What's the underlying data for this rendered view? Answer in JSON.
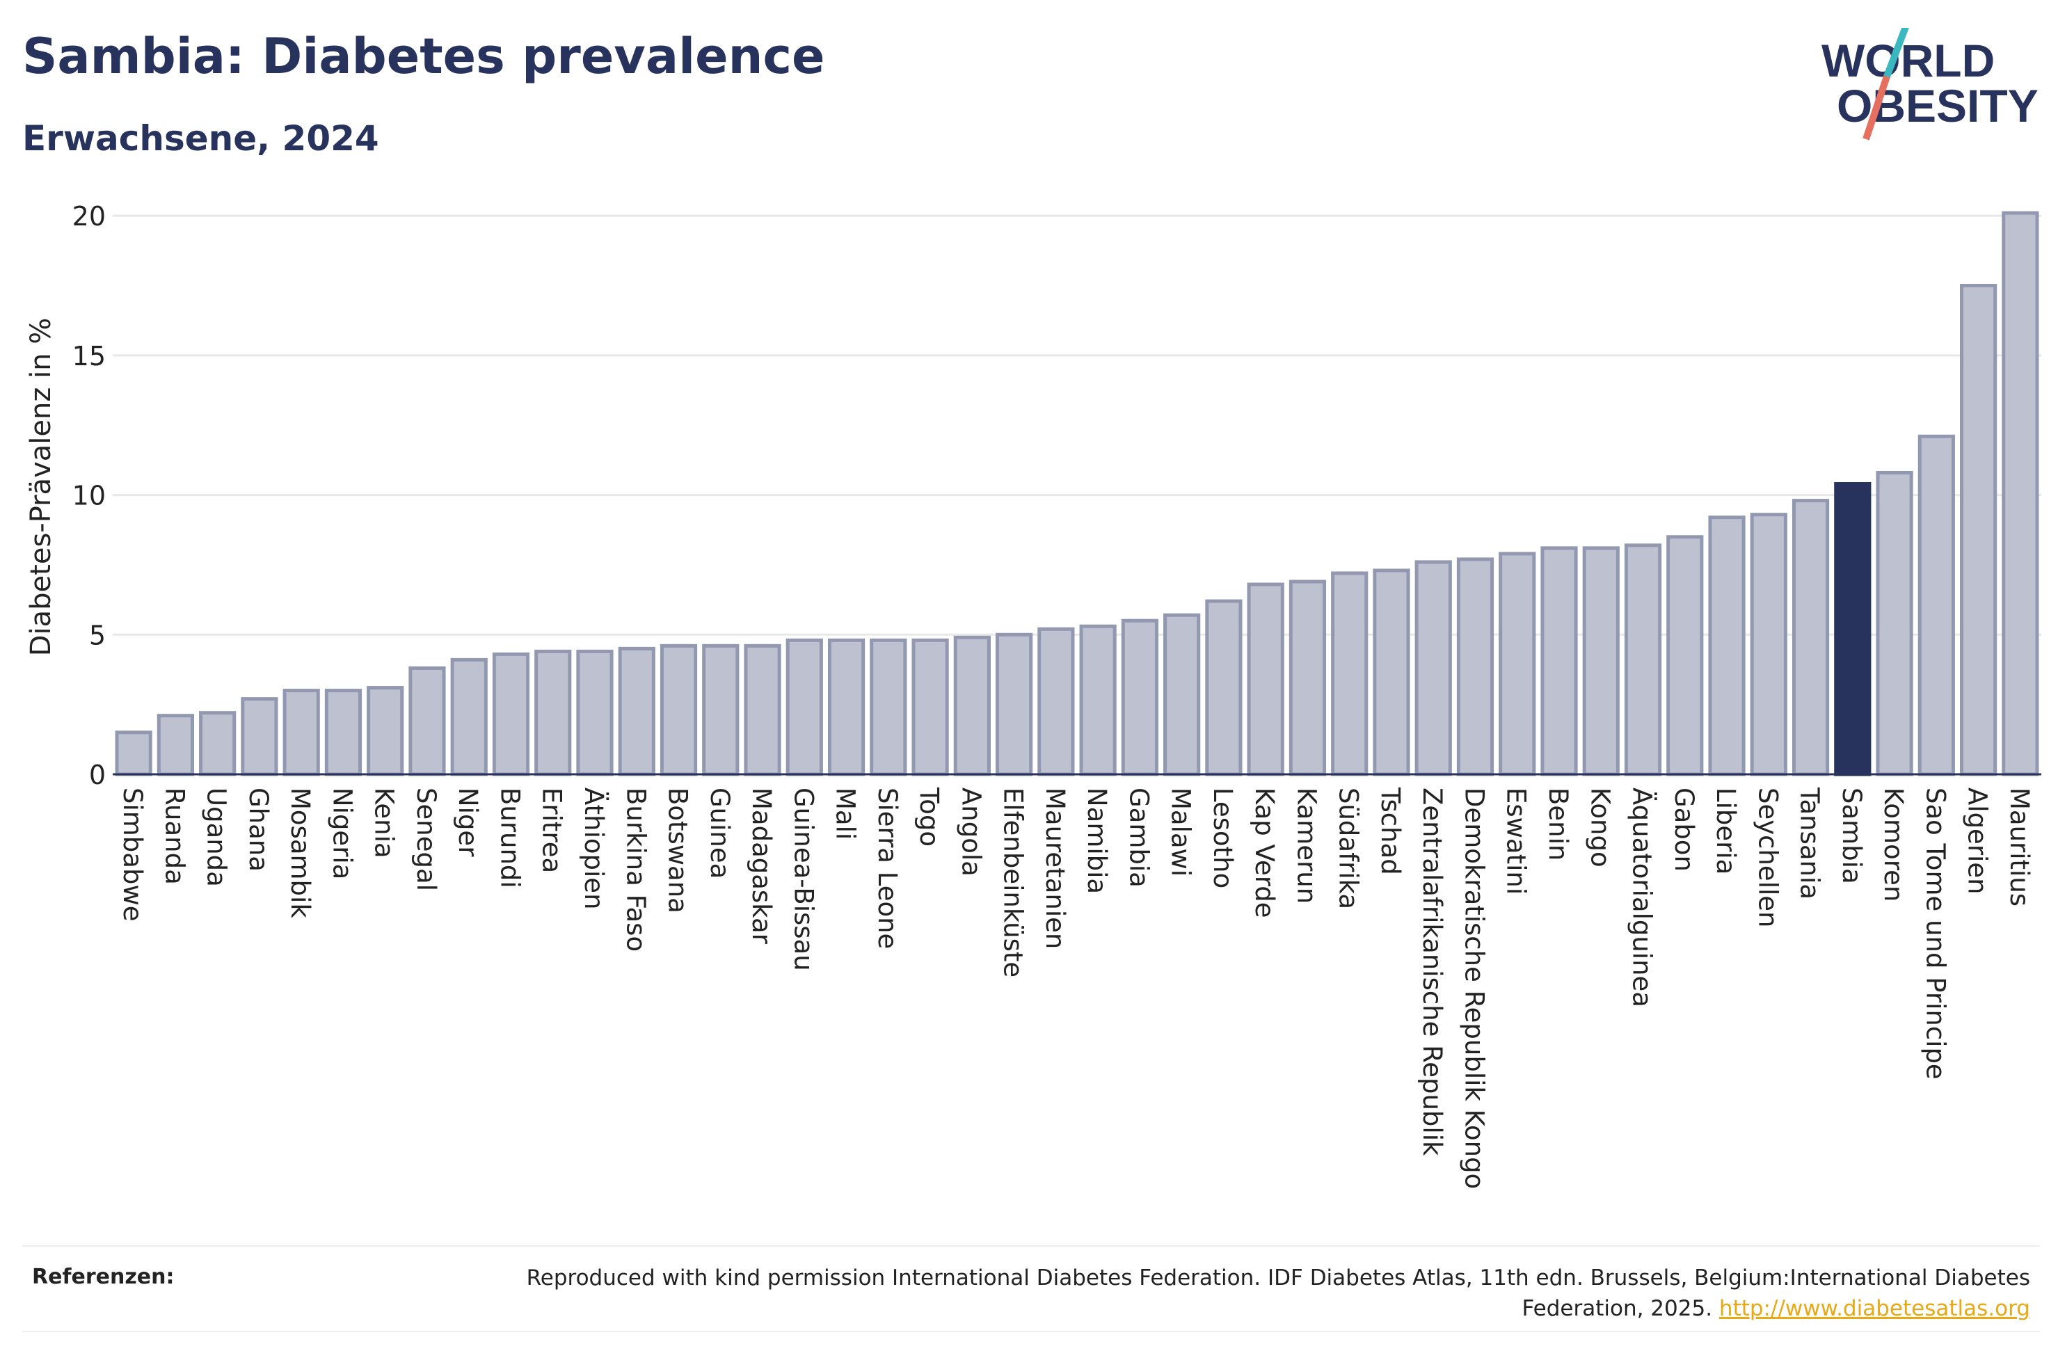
{
  "header": {
    "title": "Sambia: Diabetes prevalence",
    "subtitle": "Erwachsene, 2024"
  },
  "logo": {
    "line1": "WORLD",
    "line2": "OBESITY",
    "colors": {
      "text": "#28335d",
      "slash_top": "#3ab7bf",
      "slash_bottom": "#e5705f"
    }
  },
  "footer": {
    "label": "Referenzen:",
    "text": "Reproduced with kind permission International Diabetes Federation. IDF Diabetes Atlas, 11th edn. Brussels, Belgium:International Diabetes Federation, 2025.",
    "link": "http://www.diabetesatlas.org"
  },
  "chart_data": {
    "type": "bar",
    "title": "Sambia: Diabetes prevalence",
    "subtitle": "Erwachsene, 2024",
    "xlabel": "",
    "ylabel": "Diabetes-Prävalenz in %",
    "ylim": [
      0,
      21
    ],
    "yticks": [
      0,
      5,
      10,
      15,
      20
    ],
    "grid": true,
    "highlight": "Sambia",
    "colors": {
      "bar": "#bec1cf",
      "bar_border": "#9398b1",
      "highlight": "#28335d",
      "grid": "#e8e8e8"
    },
    "categories": [
      "Simbabwe",
      "Ruanda",
      "Uganda",
      "Ghana",
      "Mosambik",
      "Nigeria",
      "Kenia",
      "Senegal",
      "Niger",
      "Burundi",
      "Eritrea",
      "Äthiopien",
      "Burkina Faso",
      "Botswana",
      "Guinea",
      "Madagaskar",
      "Guinea-Bissau",
      "Mali",
      "Sierra Leone",
      "Togo",
      "Angola",
      "Elfenbeinküste",
      "Mauretanien",
      "Namibia",
      "Gambia",
      "Malawi",
      "Lesotho",
      "Kap Verde",
      "Kamerun",
      "Südafrika",
      "Tschad",
      "Zentralafrikanische Republik",
      "Demokratische Republik Kongo",
      "Eswatini",
      "Benin",
      "Kongo",
      "Äquatorialguinea",
      "Gabon",
      "Liberia",
      "Seychellen",
      "Tansania",
      "Sambia",
      "Komoren",
      "Sao Tome und Principe",
      "Algerien",
      "Mauritius"
    ],
    "values": [
      1.5,
      2.1,
      2.2,
      2.7,
      3.0,
      3.0,
      3.1,
      3.8,
      4.1,
      4.3,
      4.4,
      4.4,
      4.5,
      4.6,
      4.6,
      4.6,
      4.8,
      4.8,
      4.8,
      4.8,
      4.9,
      5.0,
      5.2,
      5.3,
      5.5,
      5.7,
      6.2,
      6.8,
      6.9,
      7.2,
      7.3,
      7.6,
      7.7,
      7.9,
      8.1,
      8.1,
      8.2,
      8.5,
      9.2,
      9.3,
      9.8,
      10.4,
      10.8,
      12.1,
      17.5,
      20.1
    ]
  }
}
